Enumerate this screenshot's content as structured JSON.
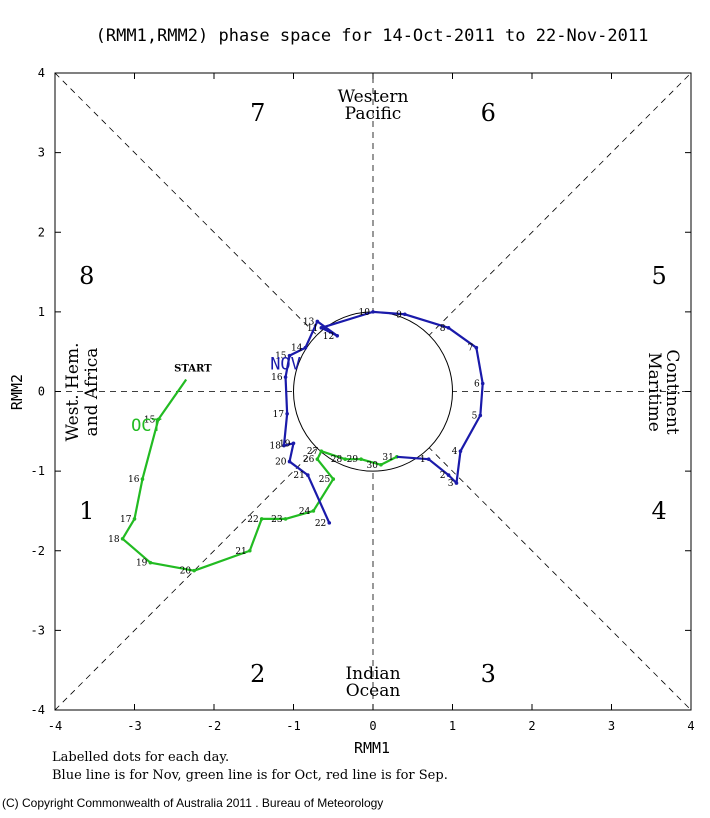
{
  "chart_data": {
    "type": "line",
    "title": "(RMM1,RMM2) phase space for 14-Oct-2011 to 22-Nov-2011",
    "xlabel": "RMM1",
    "ylabel": "RMM2",
    "xlim": [
      -4,
      4
    ],
    "ylim": [
      -4,
      4
    ],
    "x_ticks": [
      -4,
      -3,
      -2,
      -1,
      0,
      1,
      2,
      3,
      4
    ],
    "y_ticks": [
      -4,
      -3,
      -2,
      -1,
      0,
      1,
      2,
      3,
      4
    ],
    "unit_circle_radius": 1,
    "phase_numbers": [
      {
        "label": "1",
        "x": -3.6,
        "y": -1.5
      },
      {
        "label": "2",
        "x": -1.45,
        "y": -3.55
      },
      {
        "label": "3",
        "x": 1.45,
        "y": -3.55
      },
      {
        "label": "4",
        "x": 3.6,
        "y": -1.5
      },
      {
        "label": "5",
        "x": 3.6,
        "y": 1.45
      },
      {
        "label": "6",
        "x": 1.45,
        "y": 3.5
      },
      {
        "label": "7",
        "x": -1.45,
        "y": 3.5
      },
      {
        "label": "8",
        "x": -3.6,
        "y": 1.45
      }
    ],
    "region_labels": {
      "top": [
        "Western",
        "Pacific"
      ],
      "bottom": [
        "Indian",
        "Ocean"
      ],
      "left": [
        "West. Hem.",
        "and Africa"
      ],
      "right": [
        "Maritime",
        "Continent"
      ]
    },
    "start_label": {
      "text": "START",
      "x": -2.35,
      "y": 0.2
    },
    "series": [
      {
        "name": "OCT",
        "color": "#22bb22",
        "month_label": {
          "text": "OCT",
          "x": -2.85,
          "y": -0.42
        },
        "points": [
          {
            "day": "",
            "x": -2.35,
            "y": 0.15
          },
          {
            "day": "15",
            "x": -2.7,
            "y": -0.35
          },
          {
            "day": "16",
            "x": -2.9,
            "y": -1.1
          },
          {
            "day": "17",
            "x": -3.0,
            "y": -1.6
          },
          {
            "day": "18",
            "x": -3.15,
            "y": -1.85
          },
          {
            "day": "19",
            "x": -2.8,
            "y": -2.15
          },
          {
            "day": "20",
            "x": -2.25,
            "y": -2.25
          },
          {
            "day": "21",
            "x": -1.55,
            "y": -2.0
          },
          {
            "day": "22",
            "x": -1.4,
            "y": -1.6
          },
          {
            "day": "23",
            "x": -1.1,
            "y": -1.6
          },
          {
            "day": "24",
            "x": -0.75,
            "y": -1.5
          },
          {
            "day": "25",
            "x": -0.5,
            "y": -1.1
          },
          {
            "day": "26",
            "x": -0.7,
            "y": -0.85
          },
          {
            "day": "27",
            "x": -0.65,
            "y": -0.75
          },
          {
            "day": "28",
            "x": -0.35,
            "y": -0.85
          },
          {
            "day": "29",
            "x": -0.15,
            "y": -0.85
          },
          {
            "day": "30",
            "x": 0.1,
            "y": -0.92
          },
          {
            "day": "31",
            "x": 0.3,
            "y": -0.82
          }
        ]
      },
      {
        "name": "NOV",
        "color": "#1a1aaa",
        "month_label": {
          "text": "NOV",
          "x": -1.1,
          "y": 0.35
        },
        "points": [
          {
            "day": "",
            "x": 0.3,
            "y": -0.82
          },
          {
            "day": "1",
            "x": 0.7,
            "y": -0.85
          },
          {
            "day": "2",
            "x": 0.95,
            "y": -1.05
          },
          {
            "day": "3",
            "x": 1.05,
            "y": -1.15
          },
          {
            "day": "4",
            "x": 1.1,
            "y": -0.75
          },
          {
            "day": "5",
            "x": 1.35,
            "y": -0.3
          },
          {
            "day": "6",
            "x": 1.38,
            "y": 0.1
          },
          {
            "day": "7",
            "x": 1.3,
            "y": 0.55
          },
          {
            "day": "8",
            "x": 0.95,
            "y": 0.8
          },
          {
            "day": "9",
            "x": 0.4,
            "y": 0.97
          },
          {
            "day": "10",
            "x": 0.0,
            "y": 1.0
          },
          {
            "day": "11",
            "x": -0.65,
            "y": 0.8
          },
          {
            "day": "12",
            "x": -0.45,
            "y": 0.7
          },
          {
            "day": "13",
            "x": -0.7,
            "y": 0.88
          },
          {
            "day": "14",
            "x": -0.85,
            "y": 0.55
          },
          {
            "day": "15",
            "x": -1.05,
            "y": 0.45
          },
          {
            "day": "16",
            "x": -1.1,
            "y": 0.18
          },
          {
            "day": "17",
            "x": -1.08,
            "y": -0.28
          },
          {
            "day": "18",
            "x": -1.12,
            "y": -0.68
          },
          {
            "day": "19",
            "x": -1.0,
            "y": -0.65
          },
          {
            "day": "20",
            "x": -1.05,
            "y": -0.88
          },
          {
            "day": "21",
            "x": -0.82,
            "y": -1.05
          },
          {
            "day": "22",
            "x": -0.55,
            "y": -1.65
          }
        ]
      }
    ]
  },
  "footer": {
    "line1": "Labelled dots for each day.",
    "line2": "Blue line is for Nov, green line is for Oct, red line is for Sep.",
    "copyright": "(C) Copyright Commonwealth of Australia 2011 . Bureau of Meteorology"
  }
}
